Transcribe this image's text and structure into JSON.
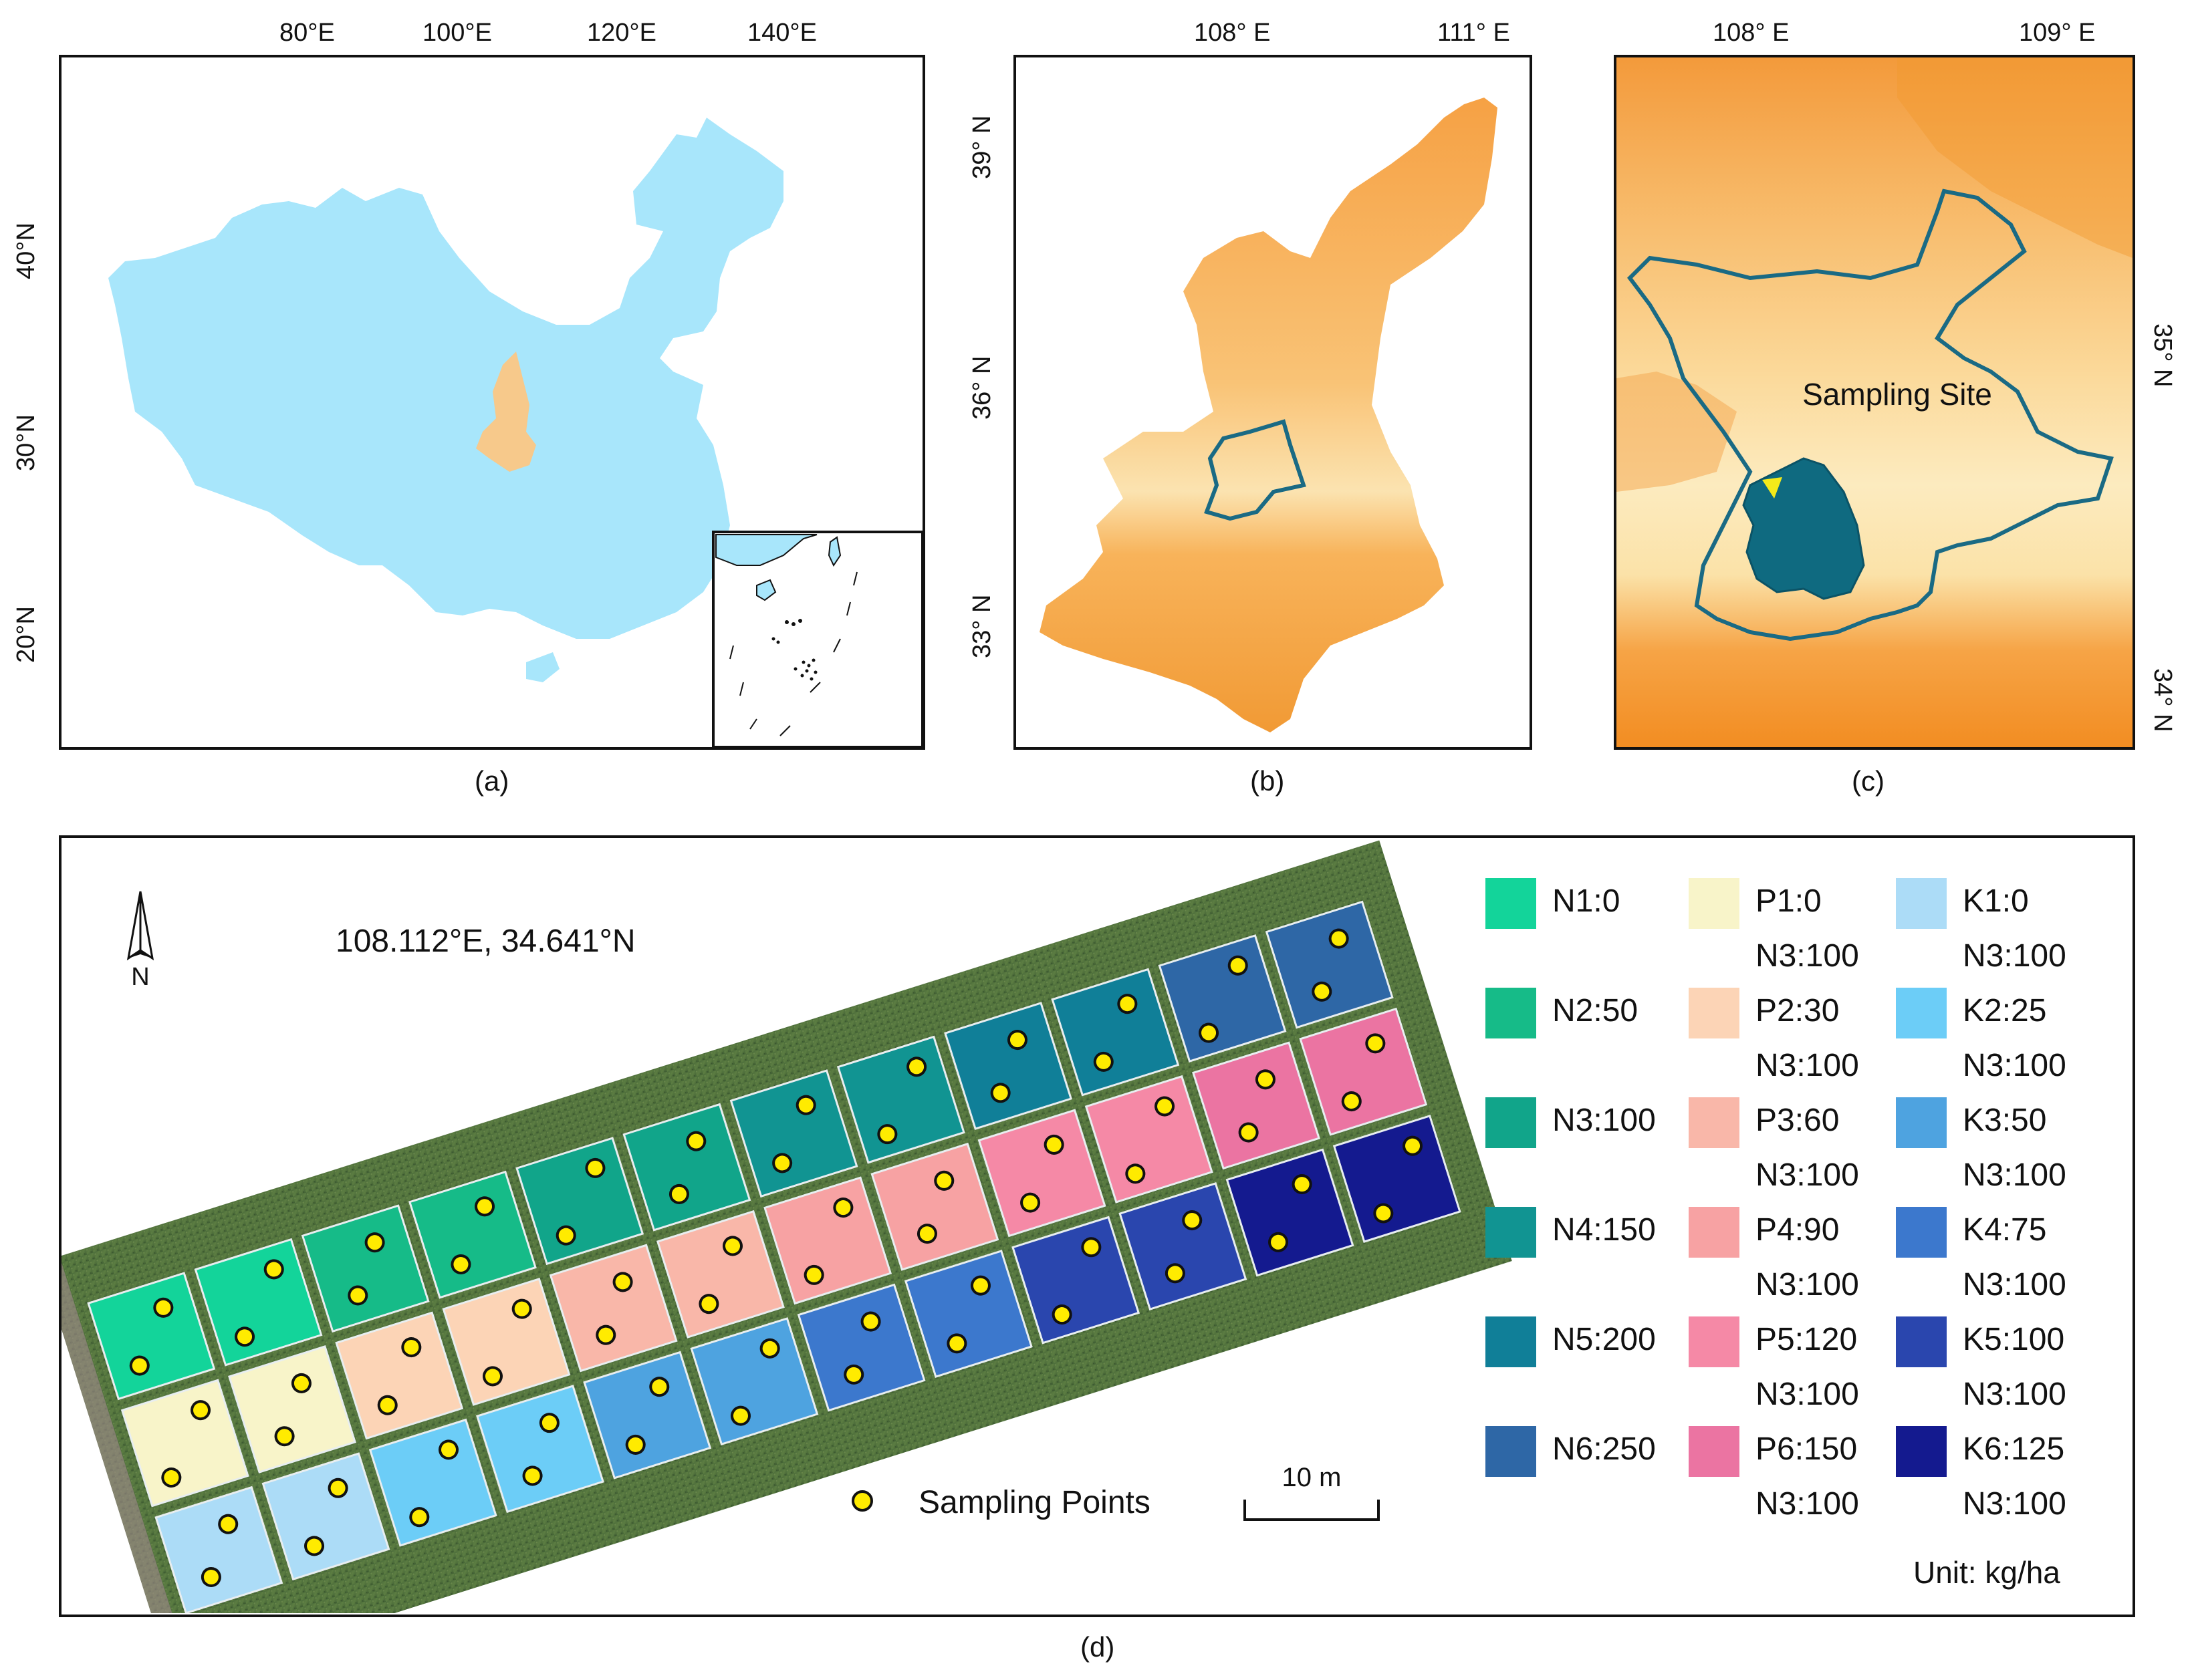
{
  "panel_a": {
    "caption": "(a)",
    "top_ticks": [
      "80°E",
      "100°E",
      "120°E",
      "140°E"
    ],
    "left_ticks": [
      "40°N",
      "30°N",
      "20°N"
    ],
    "colors": {
      "china": "#a8e6fb",
      "shaanxi": "#f7c98b"
    }
  },
  "panel_b": {
    "caption": "(b)",
    "top_ticks": [
      "108° E",
      "111° E"
    ],
    "left_ticks": [
      "39° N",
      "36° N",
      "33° N"
    ]
  },
  "panel_c": {
    "caption": "(c)",
    "top_ticks": [
      "108° E",
      "109° E"
    ],
    "right_ticks": [
      "35° N",
      "34° N"
    ],
    "site_label": "Sampling Site",
    "colors": {
      "boundary": "#1a6a84",
      "site_fill": "#0f6a80",
      "site_marker": "#f4ea1a"
    }
  },
  "panel_d": {
    "caption": "(d)",
    "coordinates": "108.112°E, 34.641°N",
    "north_label": "N",
    "sampling_points_label": "Sampling Points",
    "scale_label": "10 m",
    "unit_label": "Unit: kg/ha",
    "point_color": "#ffeb00",
    "legend": {
      "col1": [
        {
          "label": "N1:0",
          "color": "#13d49a"
        },
        {
          "label": "N2:50",
          "color": "#16bb88"
        },
        {
          "label": "N3:100",
          "color": "#11a58a"
        },
        {
          "label": "N4:150",
          "color": "#119492"
        },
        {
          "label": "N5:200",
          "color": "#107f98"
        },
        {
          "label": "N6:250",
          "color": "#2e67a6"
        }
      ],
      "col2": [
        {
          "label": "P1:0",
          "sub": "N3:100",
          "color": "#f8f4c9"
        },
        {
          "label": "P2:30",
          "sub": "N3:100",
          "color": "#fcd4b6"
        },
        {
          "label": "P3:60",
          "sub": "N3:100",
          "color": "#f9b7a9"
        },
        {
          "label": "P4:90",
          "sub": "N3:100",
          "color": "#f7a2a3"
        },
        {
          "label": "P5:120",
          "sub": "N3:100",
          "color": "#f589a6"
        },
        {
          "label": "P6:150",
          "sub": "N3:100",
          "color": "#eb74a2"
        }
      ],
      "col3": [
        {
          "label": "K1:0",
          "sub": "N3:100",
          "color": "#acdcf7"
        },
        {
          "label": "K2:25",
          "sub": "N3:100",
          "color": "#6ccdf7"
        },
        {
          "label": "K3:50",
          "sub": "N3:100",
          "color": "#4ea3e0"
        },
        {
          "label": "K4:75",
          "sub": "N3:100",
          "color": "#3c78cd"
        },
        {
          "label": "K5:100",
          "sub": "N3:100",
          "color": "#2a46ae"
        },
        {
          "label": "K6:125",
          "sub": "N3:100",
          "color": "#141a8f"
        }
      ]
    }
  }
}
